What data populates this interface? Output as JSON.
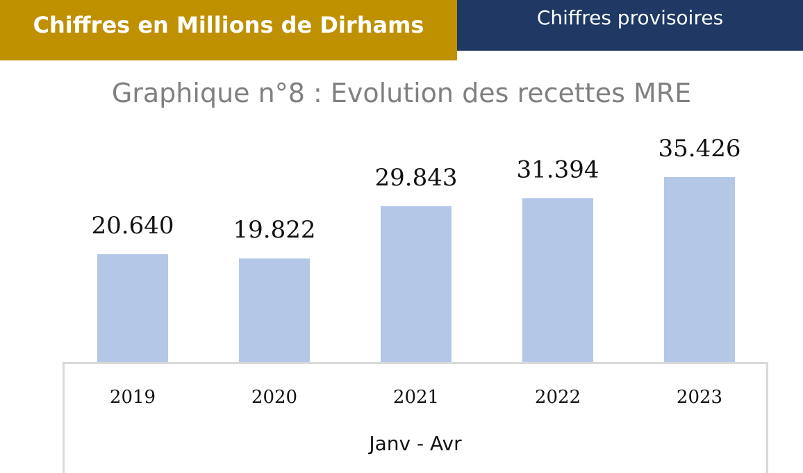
{
  "header": {
    "units_label": "Chiffres en Millions de Dirhams",
    "status_label": "Chiffres provisoires"
  },
  "colors": {
    "gold": "#bf9000",
    "navy": "#1f3864",
    "bar": "#b4c7e7"
  },
  "chart_data": {
    "type": "bar",
    "title": "Graphique n°8 : Evolution des recettes MRE",
    "categories": [
      "2019",
      "2020",
      "2021",
      "2022",
      "2023"
    ],
    "values": [
      20640,
      19822,
      29843,
      31394,
      35426
    ],
    "value_labels": [
      "20.640",
      "19.822",
      "29.843",
      "31.394",
      "35.426"
    ],
    "xlabel": "Janv - Avr",
    "ylabel": "",
    "ylim": [
      0,
      40000
    ],
    "grid": false,
    "legend": "none"
  }
}
